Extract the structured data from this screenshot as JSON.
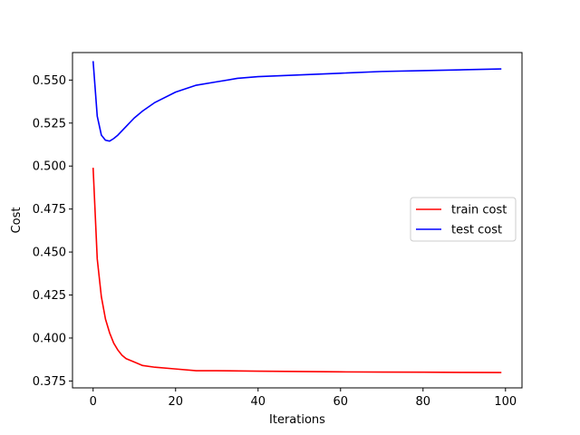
{
  "chart_data": {
    "type": "line",
    "title": "",
    "xlabel": "Iterations",
    "ylabel": "Cost",
    "xlim": [
      -5,
      104
    ],
    "ylim": [
      0.371,
      0.566
    ],
    "xticks": [
      0,
      20,
      40,
      60,
      80,
      100
    ],
    "yticks": [
      0.375,
      0.4,
      0.425,
      0.45,
      0.475,
      0.5,
      0.525,
      0.55
    ],
    "xtick_labels": [
      "0",
      "20",
      "40",
      "60",
      "80",
      "100"
    ],
    "ytick_labels": [
      "0.375",
      "0.400",
      "0.425",
      "0.450",
      "0.475",
      "0.500",
      "0.525",
      "0.550"
    ],
    "grid": false,
    "legend_position": "center-right",
    "series": [
      {
        "name": "train cost",
        "color": "#ff0000",
        "points": [
          [
            0,
            0.499
          ],
          [
            1,
            0.446
          ],
          [
            2,
            0.424
          ],
          [
            3,
            0.411
          ],
          [
            4,
            0.403
          ],
          [
            5,
            0.397
          ],
          [
            6,
            0.393
          ],
          [
            7,
            0.39
          ],
          [
            8,
            0.388
          ],
          [
            10,
            0.386
          ],
          [
            12,
            0.384
          ],
          [
            15,
            0.383
          ],
          [
            20,
            0.382
          ],
          [
            25,
            0.381
          ],
          [
            30,
            0.381
          ],
          [
            40,
            0.3807
          ],
          [
            50,
            0.3805
          ],
          [
            60,
            0.3803
          ],
          [
            70,
            0.3802
          ],
          [
            80,
            0.3801
          ],
          [
            90,
            0.38
          ],
          [
            99,
            0.3799
          ]
        ]
      },
      {
        "name": "test cost",
        "color": "#0000ff",
        "points": [
          [
            0,
            0.561
          ],
          [
            1,
            0.529
          ],
          [
            2,
            0.518
          ],
          [
            3,
            0.515
          ],
          [
            4,
            0.5145
          ],
          [
            5,
            0.516
          ],
          [
            6,
            0.518
          ],
          [
            8,
            0.523
          ],
          [
            10,
            0.528
          ],
          [
            12,
            0.532
          ],
          [
            15,
            0.537
          ],
          [
            20,
            0.543
          ],
          [
            25,
            0.547
          ],
          [
            30,
            0.549
          ],
          [
            35,
            0.551
          ],
          [
            40,
            0.552
          ],
          [
            50,
            0.553
          ],
          [
            60,
            0.554
          ],
          [
            70,
            0.555
          ],
          [
            80,
            0.5555
          ],
          [
            90,
            0.556
          ],
          [
            99,
            0.5565
          ]
        ]
      }
    ]
  }
}
